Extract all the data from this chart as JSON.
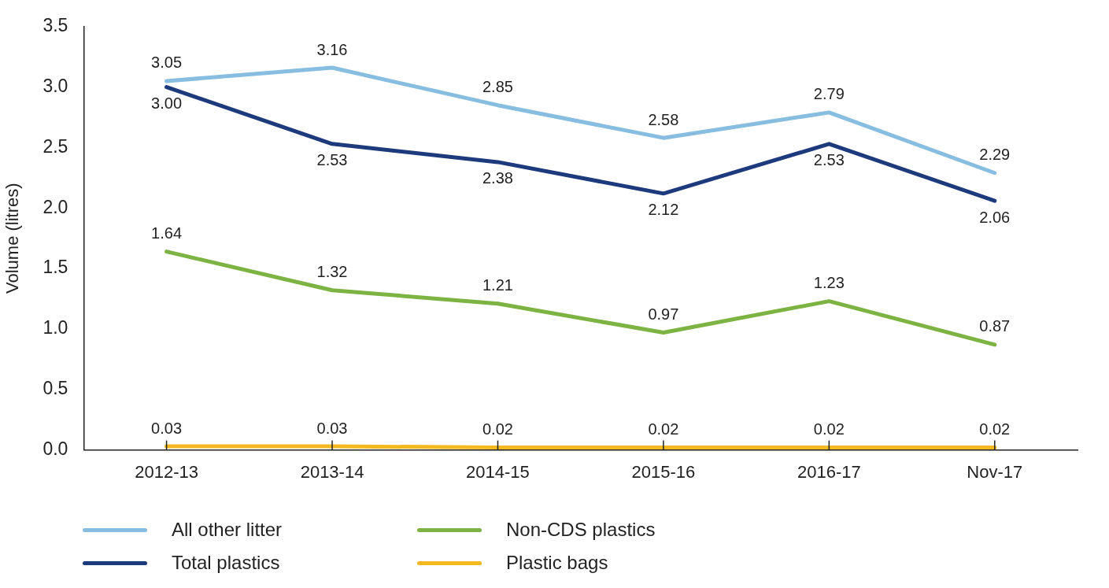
{
  "chart_data": {
    "type": "line",
    "ylabel": "Volume (litres)",
    "categories": [
      "2012-13",
      "2013-14",
      "2014-15",
      "2015-16",
      "2016-17",
      "Nov-17"
    ],
    "series": [
      {
        "name": "All other litter",
        "color": "#86bde0",
        "values": [
          3.05,
          3.16,
          2.85,
          2.58,
          2.79,
          2.29
        ],
        "value_labels": [
          "3.05",
          "3.16",
          "2.85",
          "2.58",
          "2.79",
          "2.29"
        ]
      },
      {
        "name": "Total plastics",
        "color": "#1d3a7c",
        "values": [
          3.0,
          2.53,
          2.38,
          2.12,
          2.53,
          2.06
        ],
        "value_labels": [
          "3.00",
          "2.53",
          "2.38",
          "2.12",
          "2.53",
          "2.06"
        ]
      },
      {
        "name": "Non-CDS plastics",
        "color": "#7cb342",
        "values": [
          1.64,
          1.32,
          1.21,
          0.97,
          1.23,
          0.87
        ],
        "value_labels": [
          "1.64",
          "1.32",
          "1.21",
          "0.97",
          "1.23",
          "0.87"
        ]
      },
      {
        "name": "Plastic bags",
        "color": "#f4b920",
        "values": [
          0.03,
          0.03,
          0.02,
          0.02,
          0.02,
          0.02
        ],
        "value_labels": [
          "0.03",
          "0.03",
          "0.02",
          "0.02",
          "0.02",
          "0.02"
        ]
      }
    ],
    "ylim": [
      0,
      3.5
    ],
    "yticks": [
      {
        "value": 0,
        "label": "0.0"
      },
      {
        "value": 0.5,
        "label": "0.5"
      },
      {
        "value": 1,
        "label": "1.0"
      },
      {
        "value": 1.5,
        "label": "1.5"
      },
      {
        "value": 2,
        "label": "2.0"
      },
      {
        "value": 2.5,
        "label": "2.5"
      },
      {
        "value": 3,
        "label": "3.0"
      },
      {
        "value": 3.5,
        "label": "3.5"
      }
    ],
    "grid": false,
    "legend": "bottom",
    "marker": "none",
    "line_style": "solid"
  }
}
